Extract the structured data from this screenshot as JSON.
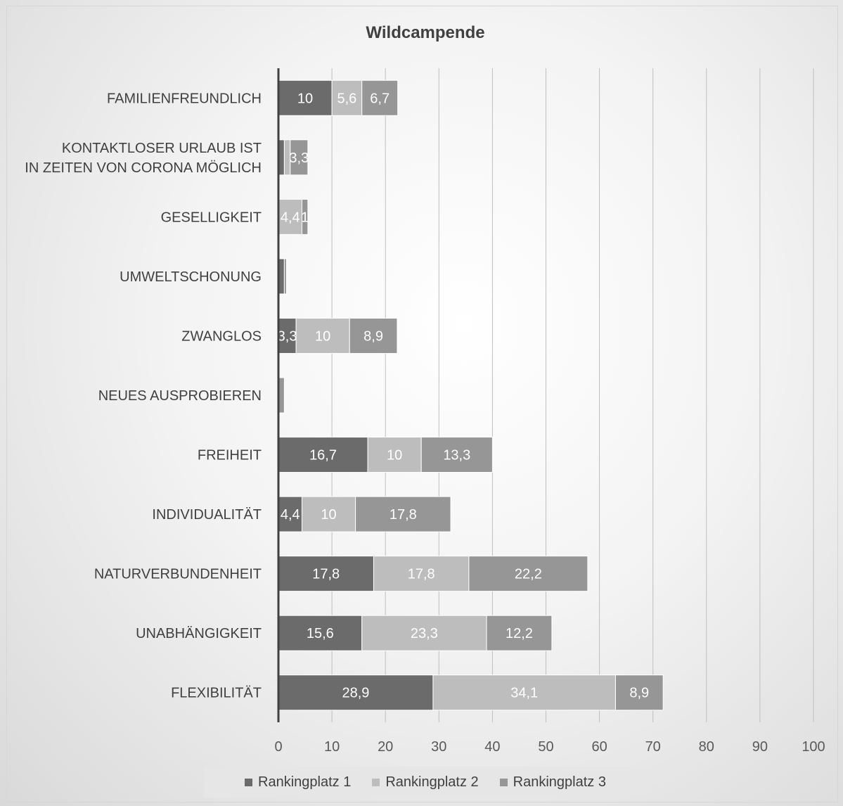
{
  "chart_data": {
    "type": "bar",
    "orientation": "horizontal",
    "stacked": true,
    "title": "Wildcampende",
    "categories": [
      "FAMILIENFREUNDLICH",
      "KONTAKTLOSER URLAUB IST\nIN ZEITEN VON CORONA MÖGLICH",
      "GESELLIGKEIT",
      "UMWELTSCHONUNG",
      "ZWANGLOS",
      "NEUES AUSPROBIEREN",
      "FREIHEIT",
      "INDIVIDUALITÄT",
      "NATURVERBUNDENHEIT",
      "UNABHÄNGIGKEIT",
      "FLEXIBILITÄT"
    ],
    "series": [
      {
        "name": "Rankingplatz 1",
        "color": "#6b6b6b",
        "values": [
          10,
          1.1,
          0,
          1.1,
          3.3,
          0,
          16.7,
          4.4,
          17.8,
          15.6,
          28.9
        ],
        "labels": [
          "10",
          "",
          "",
          "",
          "3,3",
          "",
          "16,7",
          "4,4",
          "17,8",
          "15,6",
          "28,9"
        ]
      },
      {
        "name": "Rankingplatz 2",
        "color": "#bdbdbd",
        "values": [
          5.6,
          1.1,
          4.4,
          0,
          10,
          0,
          10,
          10,
          17.8,
          23.3,
          34.1
        ],
        "labels": [
          "5,6",
          "",
          "4,4",
          "",
          "10",
          "",
          "10",
          "10",
          "17,8",
          "23,3",
          "34,1"
        ]
      },
      {
        "name": "Rankingplatz 3",
        "color": "#969696",
        "values": [
          6.7,
          3.3,
          1.1,
          0.4,
          8.9,
          1.1,
          13.3,
          17.8,
          22.2,
          12.2,
          8.9
        ],
        "labels": [
          "6,7",
          "3,3",
          "1",
          "",
          "8,9",
          "",
          "13,3",
          "17,8",
          "22,2",
          "12,2",
          "8,9"
        ]
      }
    ],
    "xlim": [
      0,
      100
    ],
    "xticks": [
      "0",
      "10",
      "20",
      "30",
      "40",
      "50",
      "60",
      "70",
      "80",
      "90",
      "100"
    ],
    "grid": true,
    "legend_position": "bottom"
  }
}
